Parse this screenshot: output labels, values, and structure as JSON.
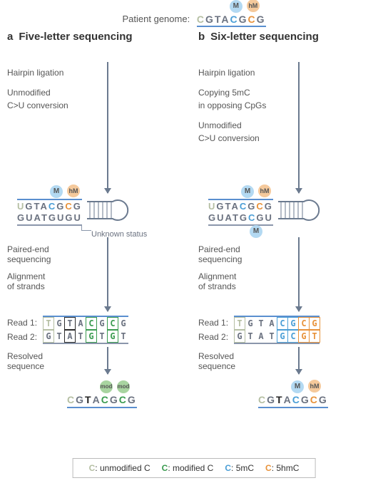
{
  "colors": {
    "c_unmodified": "#b5bfa3",
    "c_modified": "#3a9b4f",
    "c_5mc": "#4a9ed6",
    "c_5hmc": "#e8923a",
    "normal_base": "#6b7280",
    "arrow": "#6b7a8f",
    "marker_m_bg": "#b3d9f2",
    "marker_hm_bg": "#f5c99b",
    "marker_mod_bg": "#a8d4a0",
    "seq_underline": "#5a8fcf"
  },
  "header": {
    "label": "Patient genome:",
    "sequence": [
      {
        "b": "C",
        "cls": "c-unmod"
      },
      {
        "b": "G",
        "cls": "normal"
      },
      {
        "b": "T",
        "cls": "normal"
      },
      {
        "b": "A",
        "cls": "normal"
      },
      {
        "b": "C",
        "cls": "c-5mc",
        "marker": "M"
      },
      {
        "b": "G",
        "cls": "normal"
      },
      {
        "b": "C",
        "cls": "c-5hmc",
        "marker": "hM"
      },
      {
        "b": "G",
        "cls": "normal"
      }
    ]
  },
  "panels": {
    "a": {
      "letter": "a",
      "title": "Five-letter sequencing",
      "steps": [
        "Hairpin ligation",
        "Unmodified\nC>U conversion"
      ],
      "hairpin_top": [
        {
          "b": "U",
          "cls": "c-unmod"
        },
        {
          "b": "G",
          "cls": "normal"
        },
        {
          "b": "T",
          "cls": "normal"
        },
        {
          "b": "A",
          "cls": "normal"
        },
        {
          "b": "C",
          "cls": "c-5mc",
          "marker": "M"
        },
        {
          "b": "G",
          "cls": "normal"
        },
        {
          "b": "C",
          "cls": "c-5hmc",
          "marker": "hM"
        },
        {
          "b": "G",
          "cls": "normal"
        }
      ],
      "hairpin_bottom": "GUATGUGU",
      "unknown_label": "Unknown status",
      "mid_steps": [
        "Paired-end\nsequencing",
        "Alignment\nof strands"
      ],
      "read1_label": "Read 1:",
      "read2_label": "Read 2:",
      "read1": [
        {
          "b": "T",
          "cls": "c-unmod",
          "box": "box-grey"
        },
        {
          "b": "G",
          "cls": "normal"
        },
        {
          "b": "T",
          "cls": "normal",
          "box": "box-dark"
        },
        {
          "b": "A",
          "cls": "normal"
        },
        {
          "b": "C",
          "cls": "c-mod",
          "box": "box-green"
        },
        {
          "b": "G",
          "cls": "normal"
        },
        {
          "b": "C",
          "cls": "c-mod",
          "box": "box-green"
        },
        {
          "b": "G",
          "cls": "normal"
        }
      ],
      "read2": [
        {
          "b": "G",
          "cls": "normal",
          "box": "box-grey"
        },
        {
          "b": "T",
          "cls": "normal"
        },
        {
          "b": "A",
          "cls": "normal",
          "box": "box-dark"
        },
        {
          "b": "T",
          "cls": "normal"
        },
        {
          "b": "G",
          "cls": "c-mod",
          "box": "box-green"
        },
        {
          "b": "T",
          "cls": "normal"
        },
        {
          "b": "G",
          "cls": "c-mod",
          "box": "box-green"
        },
        {
          "b": "T",
          "cls": "normal"
        }
      ],
      "resolved_label": "Resolved\nsequence",
      "resolved": [
        {
          "b": "C",
          "cls": "c-unmod"
        },
        {
          "b": "G",
          "cls": "normal"
        },
        {
          "b": "T",
          "cls": "normal",
          "bold": true
        },
        {
          "b": "A",
          "cls": "normal"
        },
        {
          "b": "C",
          "cls": "c-mod",
          "marker": "mod"
        },
        {
          "b": "G",
          "cls": "normal"
        },
        {
          "b": "C",
          "cls": "c-mod",
          "marker": "mod"
        },
        {
          "b": "G",
          "cls": "normal"
        }
      ]
    },
    "b": {
      "letter": "b",
      "title": "Six-letter sequencing",
      "steps": [
        "Hairpin ligation",
        "Copying 5mC\nin opposing CpGs",
        "Unmodified\nC>U conversion"
      ],
      "hairpin_top": [
        {
          "b": "U",
          "cls": "c-unmod"
        },
        {
          "b": "G",
          "cls": "normal"
        },
        {
          "b": "T",
          "cls": "normal"
        },
        {
          "b": "A",
          "cls": "normal"
        },
        {
          "b": "C",
          "cls": "c-5mc",
          "marker": "M"
        },
        {
          "b": "G",
          "cls": "normal"
        },
        {
          "b": "C",
          "cls": "c-5hmc",
          "marker": "hM"
        },
        {
          "b": "G",
          "cls": "normal"
        }
      ],
      "hairpin_bottom_seq": [
        {
          "b": "G",
          "cls": "normal"
        },
        {
          "b": "U",
          "cls": "normal"
        },
        {
          "b": "A",
          "cls": "normal"
        },
        {
          "b": "T",
          "cls": "normal"
        },
        {
          "b": "G",
          "cls": "normal"
        },
        {
          "b": "C",
          "cls": "c-5mc",
          "marker_below": "M"
        },
        {
          "b": "G",
          "cls": "normal"
        },
        {
          "b": "U",
          "cls": "normal"
        }
      ],
      "mid_steps": [
        "Paired-end\nsequencing",
        "Alignment\nof strands"
      ],
      "read1_label": "Read 1:",
      "read2_label": "Read 2:",
      "read1": [
        {
          "b": "T",
          "cls": "c-unmod",
          "box": "box-grey"
        },
        {
          "b": "G",
          "cls": "normal"
        },
        {
          "b": "T",
          "cls": "normal"
        },
        {
          "b": "A",
          "cls": "normal"
        },
        {
          "b": "C",
          "cls": "c-5mc",
          "box": "box-blue"
        },
        {
          "b": "G",
          "cls": "c-5mc",
          "box": "box-blue"
        },
        {
          "b": "C",
          "cls": "c-5hmc",
          "box": "box-orange"
        },
        {
          "b": "G",
          "cls": "c-5hmc",
          "box": "box-orange"
        }
      ],
      "read2": [
        {
          "b": "G",
          "cls": "normal",
          "box": "box-grey"
        },
        {
          "b": "T",
          "cls": "normal"
        },
        {
          "b": "A",
          "cls": "normal"
        },
        {
          "b": "T",
          "cls": "normal"
        },
        {
          "b": "G",
          "cls": "c-5mc",
          "box": "box-blue"
        },
        {
          "b": "C",
          "cls": "c-5mc",
          "box": "box-blue"
        },
        {
          "b": "G",
          "cls": "c-5hmc",
          "box": "box-orange"
        },
        {
          "b": "T",
          "cls": "c-5hmc",
          "box": "box-orange"
        }
      ],
      "resolved_label": "Resolved\nsequence",
      "resolved": [
        {
          "b": "C",
          "cls": "c-unmod"
        },
        {
          "b": "G",
          "cls": "normal"
        },
        {
          "b": "T",
          "cls": "normal",
          "bold": true
        },
        {
          "b": "A",
          "cls": "normal"
        },
        {
          "b": "C",
          "cls": "c-5mc",
          "marker": "M"
        },
        {
          "b": "G",
          "cls": "normal"
        },
        {
          "b": "C",
          "cls": "c-5hmc",
          "marker": "hM"
        },
        {
          "b": "G",
          "cls": "normal"
        }
      ]
    }
  },
  "legend": [
    {
      "letter": "C",
      "cls": "c-unmod",
      "label": ": unmodified C"
    },
    {
      "letter": "C",
      "cls": "c-mod",
      "label": ": modified C"
    },
    {
      "letter": "C",
      "cls": "c-5mc",
      "label": ": 5mC"
    },
    {
      "letter": "C",
      "cls": "c-5hmc",
      "label": ": 5hmC"
    }
  ]
}
